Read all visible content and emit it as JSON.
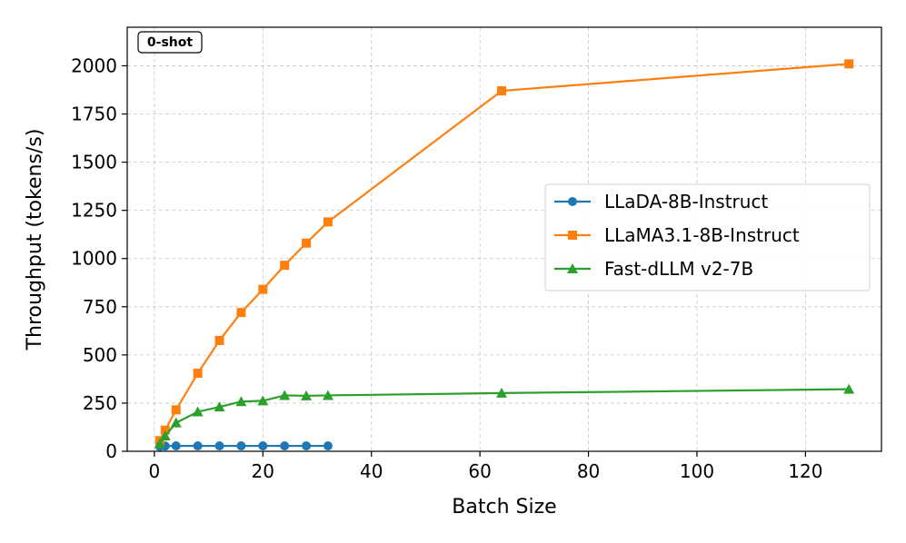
{
  "chart_data": {
    "type": "line",
    "title": "",
    "xlabel": "Batch Size",
    "ylabel": "Throughput (tokens/s)",
    "xlim": [
      -5,
      134
    ],
    "ylim": [
      0,
      2200
    ],
    "xticks": [
      0,
      20,
      40,
      60,
      80,
      100,
      120
    ],
    "yticks": [
      0,
      250,
      500,
      750,
      1000,
      1250,
      1500,
      1750,
      2000
    ],
    "grid": true,
    "legend_position": "center-right",
    "annotation": "0-shot",
    "series": [
      {
        "name": "LLaDA-8B-Instruct",
        "color": "#1f77b4",
        "marker": "circle",
        "x": [
          1,
          2,
          4,
          8,
          12,
          16,
          20,
          24,
          28,
          32
        ],
        "y": [
          25,
          27,
          28,
          28,
          28,
          28,
          28,
          28,
          28,
          28
        ]
      },
      {
        "name": "LLaMA3.1-8B-Instruct",
        "color": "#ff7f0e",
        "marker": "square",
        "x": [
          1,
          2,
          4,
          8,
          12,
          16,
          20,
          24,
          28,
          32,
          64,
          128
        ],
        "y": [
          55,
          110,
          215,
          405,
          575,
          720,
          840,
          965,
          1080,
          1190,
          1870,
          2010
        ]
      },
      {
        "name": "Fast-dLLM v2-7B",
        "color": "#2ca02c",
        "marker": "triangle",
        "x": [
          1,
          2,
          4,
          8,
          12,
          16,
          20,
          24,
          28,
          32,
          64,
          128
        ],
        "y": [
          40,
          80,
          148,
          205,
          230,
          258,
          262,
          290,
          288,
          290,
          302,
          322
        ]
      }
    ]
  }
}
